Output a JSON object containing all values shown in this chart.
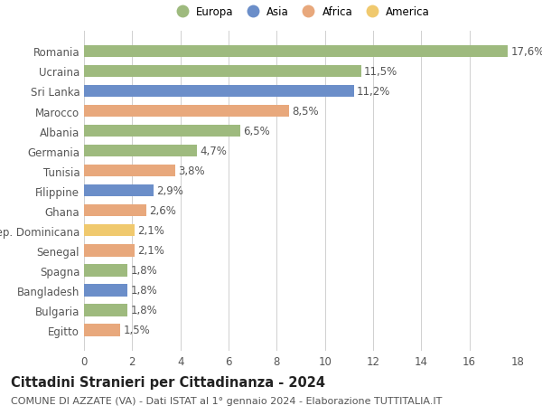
{
  "title": "Cittadini Stranieri per Cittadinanza - 2024",
  "subtitle": "COMUNE DI AZZATE (VA) - Dati ISTAT al 1° gennaio 2024 - Elaborazione TUTTITALIA.IT",
  "categories": [
    "Romania",
    "Ucraina",
    "Sri Lanka",
    "Marocco",
    "Albania",
    "Germania",
    "Tunisia",
    "Filippine",
    "Ghana",
    "Rep. Dominicana",
    "Senegal",
    "Spagna",
    "Bangladesh",
    "Bulgaria",
    "Egitto"
  ],
  "values": [
    17.6,
    11.5,
    11.2,
    8.5,
    6.5,
    4.7,
    3.8,
    2.9,
    2.6,
    2.1,
    2.1,
    1.8,
    1.8,
    1.8,
    1.5
  ],
  "continents": [
    "Europa",
    "Europa",
    "Asia",
    "Africa",
    "Europa",
    "Europa",
    "Africa",
    "Asia",
    "Africa",
    "America",
    "Africa",
    "Europa",
    "Asia",
    "Europa",
    "Africa"
  ],
  "continent_colors": {
    "Europa": "#9eba7e",
    "Asia": "#6b8ec9",
    "Africa": "#e8a87c",
    "America": "#f0c96e"
  },
  "legend_order": [
    "Europa",
    "Asia",
    "Africa",
    "America"
  ],
  "xlim": [
    0,
    18
  ],
  "xticks": [
    0,
    2,
    4,
    6,
    8,
    10,
    12,
    14,
    16,
    18
  ],
  "background_color": "#ffffff",
  "grid_color": "#d0d0d0",
  "bar_height": 0.62,
  "label_fontsize": 8.5,
  "tick_fontsize": 8.5,
  "title_fontsize": 10.5,
  "subtitle_fontsize": 8.0
}
